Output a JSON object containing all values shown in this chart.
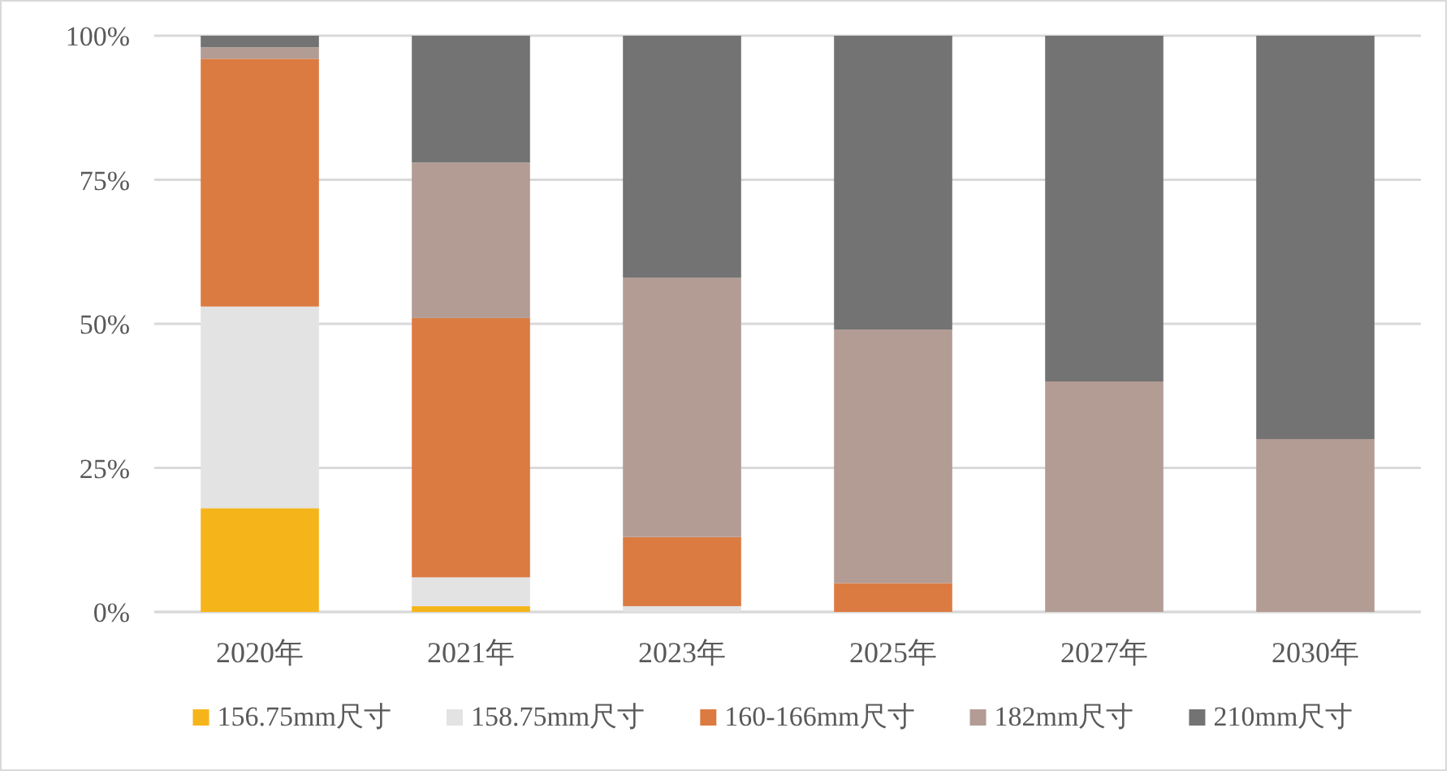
{
  "chart_data": {
    "type": "bar",
    "stacked": true,
    "categories": [
      "2020年",
      "2021年",
      "2023年",
      "2025年",
      "2027年",
      "2030年"
    ],
    "series": [
      {
        "name": "156.75mm尺寸",
        "color": "#f5b51a",
        "values": [
          18,
          1,
          0,
          0,
          0,
          0
        ]
      },
      {
        "name": "158.75mm尺寸",
        "color": "#e3e3e3",
        "values": [
          35,
          5,
          1,
          0,
          0,
          0
        ]
      },
      {
        "name": "160-166mm尺寸",
        "color": "#db7b41",
        "values": [
          43,
          45,
          12,
          5,
          0,
          0
        ]
      },
      {
        "name": "182mm尺寸",
        "color": "#b29c94",
        "values": [
          2,
          27,
          45,
          44,
          40,
          30
        ]
      },
      {
        "name": "210mm尺寸",
        "color": "#737373",
        "values": [
          2,
          22,
          42,
          51,
          60,
          70
        ]
      }
    ],
    "ylim": [
      0,
      100
    ],
    "yticks": [
      {
        "value": 0,
        "label": "0%"
      },
      {
        "value": 25,
        "label": "25%"
      },
      {
        "value": 50,
        "label": "50%"
      },
      {
        "value": 75,
        "label": "75%"
      },
      {
        "value": 100,
        "label": "100%"
      }
    ],
    "grid": "y",
    "legend": "bottom"
  }
}
